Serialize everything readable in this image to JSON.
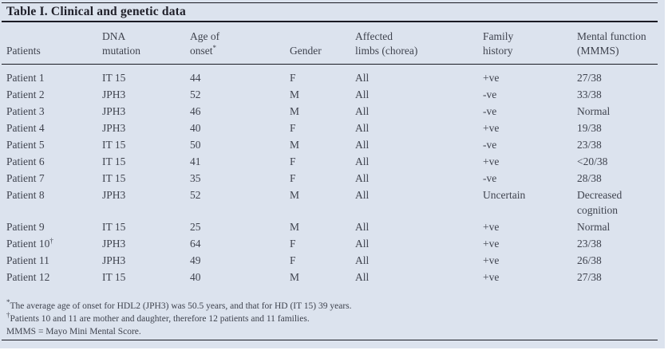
{
  "table": {
    "title": "Table I. Clinical and genetic data",
    "columns": [
      {
        "lines": [
          "Patients"
        ],
        "sup": ""
      },
      {
        "lines": [
          "DNA",
          "mutation"
        ],
        "sup": ""
      },
      {
        "lines": [
          "Age of",
          "onset"
        ],
        "sup": "*"
      },
      {
        "lines": [
          "Gender"
        ],
        "sup": ""
      },
      {
        "lines": [
          "Affected",
          "limbs (chorea)"
        ],
        "sup": ""
      },
      {
        "lines": [
          "Family",
          "history"
        ],
        "sup": ""
      },
      {
        "lines": [
          "Mental function",
          "(MMMS)"
        ],
        "sup": ""
      }
    ],
    "rows": [
      {
        "patient": "Patient 1",
        "patient_sup": "",
        "dna_mutation": "IT 15",
        "age_of_onset": "44",
        "gender": "F",
        "affected_limbs": "All",
        "family_history": "+ve",
        "mental_function": "27/38"
      },
      {
        "patient": "Patient 2",
        "patient_sup": "",
        "dna_mutation": "JPH3",
        "age_of_onset": "52",
        "gender": "M",
        "affected_limbs": "All",
        "family_history": "-ve",
        "mental_function": "33/38"
      },
      {
        "patient": "Patient 3",
        "patient_sup": "",
        "dna_mutation": "JPH3",
        "age_of_onset": "46",
        "gender": "M",
        "affected_limbs": "All",
        "family_history": "-ve",
        "mental_function": "Normal"
      },
      {
        "patient": "Patient 4",
        "patient_sup": "",
        "dna_mutation": "JPH3",
        "age_of_onset": "40",
        "gender": "F",
        "affected_limbs": "All",
        "family_history": "+ve",
        "mental_function": "19/38"
      },
      {
        "patient": "Patient 5",
        "patient_sup": "",
        "dna_mutation": "IT 15",
        "age_of_onset": "50",
        "gender": "M",
        "affected_limbs": "All",
        "family_history": "-ve",
        "mental_function": "23/38"
      },
      {
        "patient": "Patient 6",
        "patient_sup": "",
        "dna_mutation": "IT 15",
        "age_of_onset": "41",
        "gender": "F",
        "affected_limbs": "All",
        "family_history": "+ve",
        "mental_function": "<20/38"
      },
      {
        "patient": "Patient 7",
        "patient_sup": "",
        "dna_mutation": "IT 15",
        "age_of_onset": "35",
        "gender": "F",
        "affected_limbs": "All",
        "family_history": "-ve",
        "mental_function": "28/38"
      },
      {
        "patient": "Patient 8",
        "patient_sup": "",
        "dna_mutation": "JPH3",
        "age_of_onset": "52",
        "gender": "M",
        "affected_limbs": "All",
        "family_history": "Uncertain",
        "mental_function": "Decreased cognition"
      },
      {
        "patient": "Patient 9",
        "patient_sup": "",
        "dna_mutation": "IT 15",
        "age_of_onset": "25",
        "gender": "M",
        "affected_limbs": "All",
        "family_history": "+ve",
        "mental_function": "Normal"
      },
      {
        "patient": "Patient 10",
        "patient_sup": "†",
        "dna_mutation": "JPH3",
        "age_of_onset": "64",
        "gender": "F",
        "affected_limbs": "All",
        "family_history": "+ve",
        "mental_function": "23/38"
      },
      {
        "patient": "Patient 11",
        "patient_sup": "",
        "dna_mutation": "JPH3",
        "age_of_onset": "49",
        "gender": "F",
        "affected_limbs": "All",
        "family_history": "+ve",
        "mental_function": "26/38"
      },
      {
        "patient": "Patient 12",
        "patient_sup": "",
        "dna_mutation": "IT 15",
        "age_of_onset": "40",
        "gender": "M",
        "affected_limbs": "All",
        "family_history": "+ve",
        "mental_function": "27/38"
      }
    ],
    "footnotes": [
      {
        "sup": "*",
        "text": "The average age of onset for HDL2 (JPH3) was 50.5 years, and that for HD (IT 15) 39 years."
      },
      {
        "sup": "†",
        "text": "Patients 10 and 11 are mother and daughter, therefore 12 patients and 11 families."
      },
      {
        "sup": "",
        "text": "MMMS = Mayo Mini Mental Score."
      }
    ],
    "colors": {
      "panel_background": "#dce3ee",
      "rule": "#1a1a23",
      "text": "#3f434e",
      "title_text": "#20202a"
    }
  }
}
